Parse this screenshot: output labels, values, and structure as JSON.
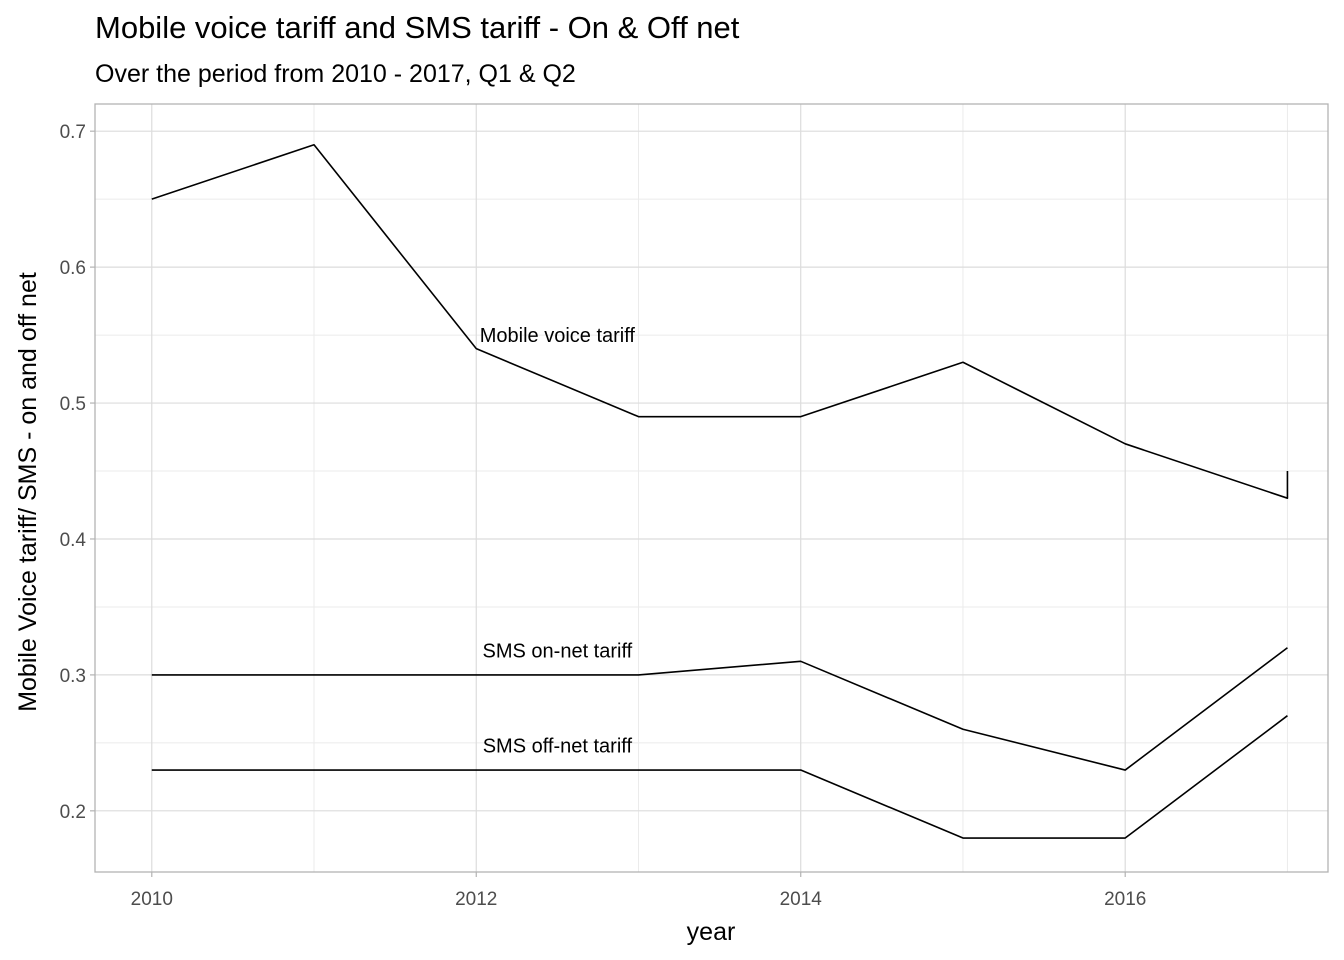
{
  "chart_data": {
    "type": "line",
    "title": "Mobile voice tariff and SMS tariff - On & Off net",
    "subtitle": "Over the period from 2010 - 2017, Q1 & Q2",
    "xlabel": "year",
    "ylabel": "Mobile Voice tariff/ SMS - on and off net",
    "xlim": [
      2009.65,
      2017.25
    ],
    "ylim": [
      0.155,
      0.72
    ],
    "x_ticks": [
      "2010",
      "2012",
      "2014",
      "2016"
    ],
    "y_ticks": [
      "0.2",
      "0.3",
      "0.4",
      "0.5",
      "0.6",
      "0.7"
    ],
    "grid": true,
    "legend": "none",
    "series": [
      {
        "name": "Mobile voice tariff",
        "x": [
          2010,
          2011,
          2012,
          2013,
          2014,
          2015,
          2016,
          2017,
          2017
        ],
        "values": [
          0.65,
          0.69,
          0.54,
          0.49,
          0.49,
          0.53,
          0.47,
          0.43,
          0.45
        ],
        "label_at": [
          2012.5,
          0.55
        ]
      },
      {
        "name": "SMS on-net tariff",
        "x": [
          2010,
          2011,
          2012,
          2013,
          2014,
          2015,
          2016,
          2017
        ],
        "values": [
          0.3,
          0.3,
          0.3,
          0.3,
          0.31,
          0.26,
          0.23,
          0.32
        ],
        "label_at": [
          2012.5,
          0.318
        ]
      },
      {
        "name": "SMS off-net tariff",
        "x": [
          2010,
          2011,
          2012,
          2013,
          2014,
          2015,
          2016,
          2017
        ],
        "values": [
          0.23,
          0.23,
          0.23,
          0.23,
          0.23,
          0.18,
          0.18,
          0.27
        ],
        "label_at": [
          2012.5,
          0.248
        ]
      }
    ]
  }
}
